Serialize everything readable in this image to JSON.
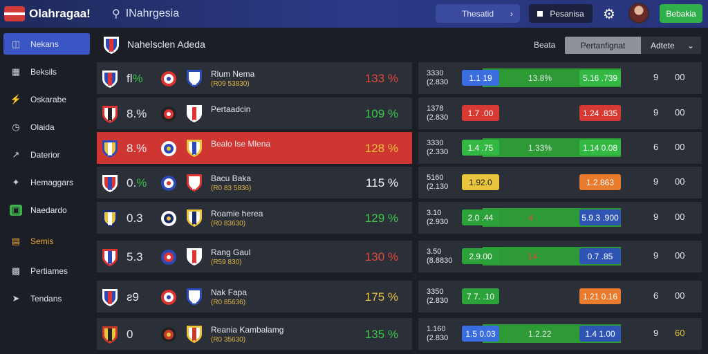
{
  "header": {
    "app_title": "Olahragaa!",
    "search_placeholder": "INahrgesia",
    "selector_label": "Thesatid",
    "selector_chevron": "›",
    "dark_button_label": "Pesanisa",
    "gear_icon": "gear-icon",
    "login_button_label": "Bebakia"
  },
  "sidebar": {
    "items": [
      {
        "label": "Nekans",
        "icon": "shield-icon",
        "active": true
      },
      {
        "label": "Beksils",
        "icon": "chart-icon"
      },
      {
        "label": "Oskarabe",
        "icon": "lightning-icon"
      },
      {
        "label": "Olaida",
        "icon": "clock-icon"
      },
      {
        "label": "Daterior",
        "icon": "trend-icon"
      },
      {
        "label": "Hemaggars",
        "icon": "wand-icon"
      },
      {
        "label": "Naedardo",
        "icon": "grass-icon"
      },
      {
        "label": "Semis",
        "icon": "ticket-icon",
        "accent": true
      },
      {
        "label": "Pertiames",
        "icon": "calendar-icon"
      },
      {
        "label": "Tendans",
        "icon": "arrow-icon"
      }
    ]
  },
  "main": {
    "title": "Nahelsclen Adeda",
    "filter_label": "Beata",
    "tab_active": "Pertanfignat",
    "dropdown_label": "Adtete",
    "dropdown_chevron": "⌄"
  },
  "colors": {
    "accent": "#3a55c4",
    "highlight": "#cf3631",
    "green": "#2fb04a",
    "odds_red": "#e5483d",
    "odds_green": "#3cc84e",
    "odds_yellow": "#e9c43c"
  },
  "matches": [
    {
      "pct_main": "fl",
      "pct_sign": "%",
      "name": "Rlum Nema",
      "sub": "(R09 53830)",
      "odds": "133 %",
      "odds_color": "#e5483d"
    },
    {
      "pct_main": "8.%",
      "pct_sign": "",
      "name": "Pertaadcin",
      "sub": "",
      "odds": "109 %",
      "odds_color": "#3cc84e"
    },
    {
      "pct_main": "8.%",
      "pct_sign": "",
      "name": "Bealo Ise Mlena",
      "sub": "",
      "odds": "128 %",
      "odds_color": "#e9c43c",
      "highlight": true
    },
    {
      "pct_main": "0.",
      "pct_sign": "%",
      "name": "Bacu Baka",
      "sub": "(R0 83 5836)",
      "odds": "115 %",
      "odds_color": "#ffffff"
    },
    {
      "pct_main": "0.3",
      "pct_sign": "",
      "name": "Roamie herea",
      "sub": "(R0 83630)",
      "odds": "129 %",
      "odds_color": "#3cc84e"
    },
    {
      "pct_main": "5.3",
      "pct_sign": "",
      "name": "Rang Gaul",
      "sub": "(R59 830)",
      "odds": "130 %",
      "odds_color": "#e5483d"
    },
    {
      "pct_main": "ƨ9",
      "pct_sign": "",
      "name": "Nak Fapa",
      "sub": "(R0 85636)",
      "odds": "175 %",
      "odds_color": "#e9c43c"
    },
    {
      "pct_main": "0",
      "pct_sign": "",
      "name": "Reania Kambalamg",
      "sub": "(R0 35630)",
      "odds": "135 %",
      "odds_color": "#3cc84e"
    }
  ],
  "markets": [
    {
      "n1": "3330",
      "n2": "(2.830",
      "left": "1.1 19",
      "left_color": "#3a6de0",
      "mid": "13.8%",
      "right": "5.16 .739",
      "right_color": "#34b844",
      "c1": "9",
      "c2": "00"
    },
    {
      "n1": "1378",
      "n2": "(2.830",
      "left": "1.7 .00",
      "left_color": "#d63a32",
      "mid": "",
      "right": "1.24 .835",
      "right_color": "#d63a32",
      "c1": "9",
      "c2": "00"
    },
    {
      "n1": "3330",
      "n2": "(2.330",
      "left": "1.4 .75",
      "left_color": "#34b844",
      "mid": "1.33%",
      "right": "1.14 0.08",
      "right_color": "#34b844",
      "c1": "6",
      "c2": "00"
    },
    {
      "n1": "5160",
      "n2": "(2.130",
      "left": "1.92.0",
      "left_color": "#e9c43c",
      "mid": "",
      "right": "1.2.863",
      "right_color": "#ea7a2c",
      "c1": "9",
      "c2": "00"
    },
    {
      "n1": "3.10",
      "n2": "(2.930",
      "left": "2.0 .44",
      "left_color": "#2ba23a",
      "mid": "4",
      "right": "5.9.3 .900",
      "right_color": "#2f55b4",
      "c1": "9",
      "c2": "00"
    },
    {
      "n1": "3.50",
      "n2": "(8.8830",
      "left": "2.9.00",
      "left_color": "#2ba23a",
      "mid": "14",
      "right": "0.7 .85",
      "right_color": "#2f55b4",
      "c1": "9",
      "c2": "00"
    },
    {
      "n1": "3350",
      "n2": "(2.830",
      "left": "7 7. .10",
      "left_color": "#2ba23a",
      "mid": "",
      "right": "1.21 0.16",
      "right_color": "#ea7a2c",
      "c1": "6",
      "c2": "00"
    },
    {
      "n1": "1.160",
      "n2": "(2.830",
      "left": "1.5 0.03",
      "left_color": "#3a6de0",
      "mid": "1.2.22",
      "right": "1.4 1.00",
      "right_color": "#2f55b4",
      "c1": "9",
      "c2": "60"
    }
  ]
}
